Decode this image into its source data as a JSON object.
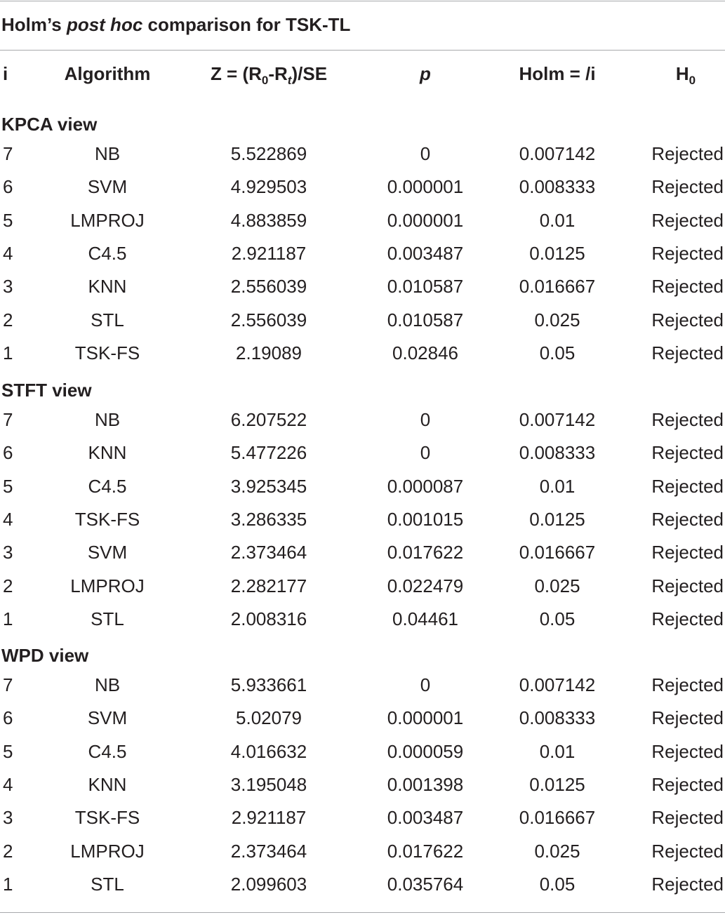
{
  "table": {
    "title_parts": [
      "Holm’s ",
      "post hoc",
      " comparison for TSK-TL"
    ],
    "headers": {
      "i": "i",
      "algorithm": "Algorithm",
      "z_prefix": "Z = (R",
      "z_sub0": "0",
      "z_mid": "-R",
      "z_subt": "t",
      "z_suffix": ")/SE",
      "p": "p",
      "holm": "Holm = /i",
      "h0_main": "H",
      "h0_sub": "0"
    },
    "sections": [
      {
        "label": "KPCA view",
        "rows": [
          {
            "i": "7",
            "algorithm": "NB",
            "z": "5.522869",
            "p": "0",
            "holm": "0.007142",
            "h0": "Rejected"
          },
          {
            "i": "6",
            "algorithm": "SVM",
            "z": "4.929503",
            "p": "0.000001",
            "holm": "0.008333",
            "h0": "Rejected"
          },
          {
            "i": "5",
            "algorithm": "LMPROJ",
            "z": "4.883859",
            "p": "0.000001",
            "holm": "0.01",
            "h0": "Rejected"
          },
          {
            "i": "4",
            "algorithm": "C4.5",
            "z": "2.921187",
            "p": "0.003487",
            "holm": "0.0125",
            "h0": "Rejected"
          },
          {
            "i": "3",
            "algorithm": "KNN",
            "z": "2.556039",
            "p": "0.010587",
            "holm": "0.016667",
            "h0": "Rejected"
          },
          {
            "i": "2",
            "algorithm": "STL",
            "z": "2.556039",
            "p": "0.010587",
            "holm": "0.025",
            "h0": "Rejected"
          },
          {
            "i": "1",
            "algorithm": "TSK-FS",
            "z": "2.19089",
            "p": "0.02846",
            "holm": "0.05",
            "h0": "Rejected"
          }
        ]
      },
      {
        "label": "STFT view",
        "rows": [
          {
            "i": "7",
            "algorithm": "NB",
            "z": "6.207522",
            "p": "0",
            "holm": "0.007142",
            "h0": "Rejected"
          },
          {
            "i": "6",
            "algorithm": "KNN",
            "z": "5.477226",
            "p": "0",
            "holm": "0.008333",
            "h0": "Rejected"
          },
          {
            "i": "5",
            "algorithm": "C4.5",
            "z": "3.925345",
            "p": "0.000087",
            "holm": "0.01",
            "h0": "Rejected"
          },
          {
            "i": "4",
            "algorithm": "TSK-FS",
            "z": "3.286335",
            "p": "0.001015",
            "holm": "0.0125",
            "h0": "Rejected"
          },
          {
            "i": "3",
            "algorithm": "SVM",
            "z": "2.373464",
            "p": "0.017622",
            "holm": "0.016667",
            "h0": "Rejected"
          },
          {
            "i": "2",
            "algorithm": "LMPROJ",
            "z": "2.282177",
            "p": "0.022479",
            "holm": "0.025",
            "h0": "Rejected"
          },
          {
            "i": "1",
            "algorithm": "STL",
            "z": "2.008316",
            "p": "0.04461",
            "holm": "0.05",
            "h0": "Rejected"
          }
        ]
      },
      {
        "label": "WPD view",
        "rows": [
          {
            "i": "7",
            "algorithm": "NB",
            "z": "5.933661",
            "p": "0",
            "holm": "0.007142",
            "h0": "Rejected"
          },
          {
            "i": "6",
            "algorithm": "SVM",
            "z": "5.02079",
            "p": "0.000001",
            "holm": "0.008333",
            "h0": "Rejected"
          },
          {
            "i": "5",
            "algorithm": "C4.5",
            "z": "4.016632",
            "p": "0.000059",
            "holm": "0.01",
            "h0": "Rejected"
          },
          {
            "i": "4",
            "algorithm": "KNN",
            "z": "3.195048",
            "p": "0.001398",
            "holm": "0.0125",
            "h0": "Rejected"
          },
          {
            "i": "3",
            "algorithm": "TSK-FS",
            "z": "2.921187",
            "p": "0.003487",
            "holm": "0.016667",
            "h0": "Rejected"
          },
          {
            "i": "2",
            "algorithm": "LMPROJ",
            "z": "2.373464",
            "p": "0.017622",
            "holm": "0.025",
            "h0": "Rejected"
          },
          {
            "i": "1",
            "algorithm": "STL",
            "z": "2.099603",
            "p": "0.035764",
            "holm": "0.05",
            "h0": "Rejected"
          }
        ]
      }
    ]
  }
}
